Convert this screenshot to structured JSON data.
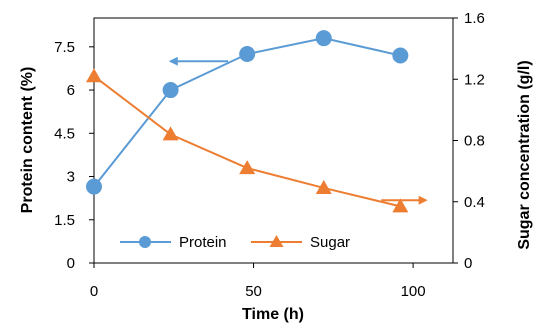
{
  "chart_data": {
    "type": "line",
    "xlabel": "Time (h)",
    "ylabel_left": "Protein content (%)",
    "ylabel_right": "Sugar concentration (g/l)",
    "x_ticks": [
      "0",
      "50",
      "100"
    ],
    "x_tick_values": [
      0,
      50,
      100
    ],
    "xlim": [
      0,
      112.5
    ],
    "y_left_ticks": [
      "0",
      "1.5",
      "3",
      "4.5",
      "6",
      "7.5"
    ],
    "y_left_tick_values": [
      0,
      1.5,
      3,
      4.5,
      6,
      7.5
    ],
    "ylim_left": [
      0,
      8.5
    ],
    "y_right_ticks": [
      "0",
      "0.4",
      "0.8",
      "1.2",
      "1.6"
    ],
    "y_right_tick_values": [
      0,
      0.4,
      0.8,
      1.2,
      1.6
    ],
    "ylim_right": [
      0,
      1.6
    ],
    "grid": false,
    "legend_position": "bottom-center",
    "series": [
      {
        "name": "Protein",
        "axis": "left",
        "color": "#5b9bd5",
        "marker": "circle",
        "x": [
          0,
          24,
          48,
          72,
          96
        ],
        "y": [
          2.65,
          6.0,
          7.25,
          7.8,
          7.2
        ]
      },
      {
        "name": "Sugar",
        "axis": "right",
        "color": "#ed7d31",
        "marker": "triangle",
        "x": [
          0,
          24,
          48,
          72,
          96
        ],
        "y": [
          1.22,
          0.84,
          0.62,
          0.49,
          0.37
        ]
      }
    ],
    "annotations": [
      {
        "kind": "arrow",
        "direction": "left",
        "color": "#5b9bd5",
        "x_from": 42,
        "x_to": 24,
        "y": 7.0,
        "axis": "left"
      },
      {
        "kind": "arrow",
        "direction": "right",
        "color": "#ed7d31",
        "x_from": 90,
        "x_to": 104,
        "y": 0.41,
        "axis": "right"
      }
    ]
  }
}
